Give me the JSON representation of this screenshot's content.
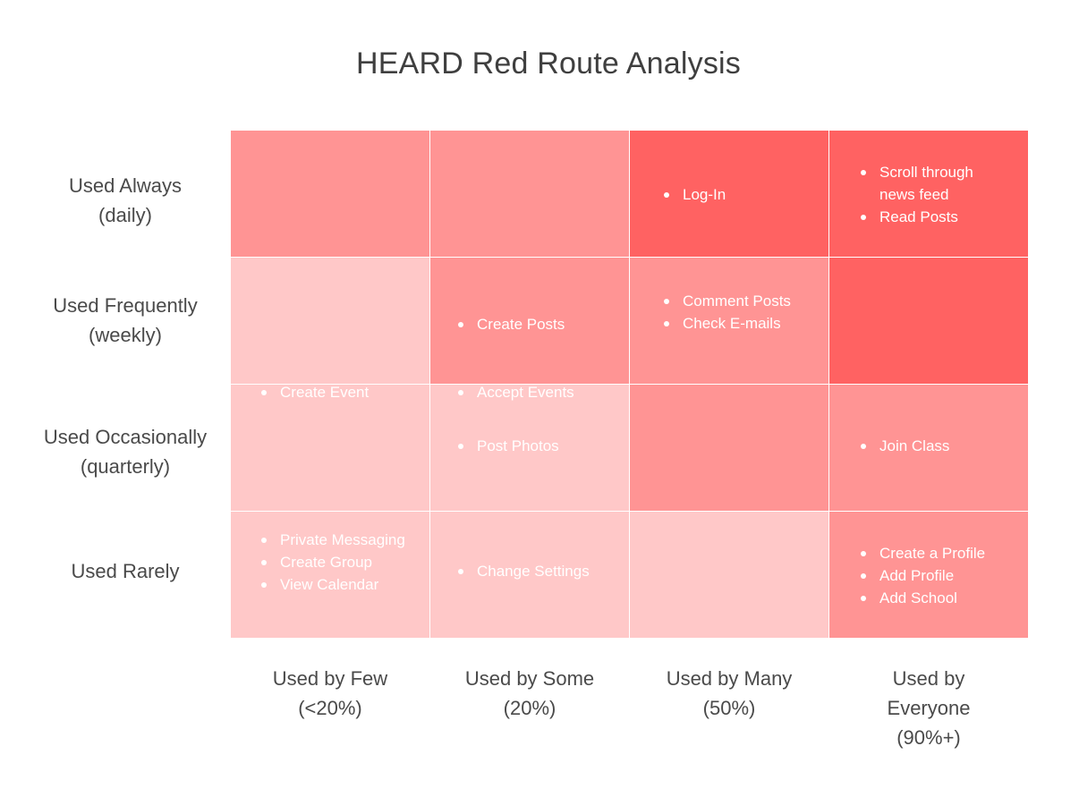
{
  "title": "HEARD Red Route Analysis",
  "colors": {
    "dark": "#ff6262",
    "mid": "#ff9494",
    "light": "#ffc8c8"
  },
  "rows": [
    {
      "line1": "Used Always",
      "line2": "(daily)"
    },
    {
      "line1": "Used Frequently",
      "line2": "(weekly)"
    },
    {
      "line1": "Used Occasionally",
      "line2": "(quarterly)"
    },
    {
      "line1": "Used Rarely",
      "line2": ""
    }
  ],
  "columns": [
    {
      "line1": "Used by Few",
      "line2": "(<20%)",
      "line3": ""
    },
    {
      "line1": "Used by Some",
      "line2": "(20%)",
      "line3": ""
    },
    {
      "line1": "Used by Many",
      "line2": "(50%)",
      "line3": ""
    },
    {
      "line1": "Used by",
      "line2": "Everyone",
      "line3": "(90%+)"
    }
  ],
  "cells": [
    [
      {
        "intensity": "mid",
        "items": []
      },
      {
        "intensity": "mid",
        "items": []
      },
      {
        "intensity": "dark",
        "items": [
          "Log-In"
        ]
      },
      {
        "intensity": "dark",
        "items": [
          "Scroll through news feed",
          "Read Posts"
        ]
      }
    ],
    [
      {
        "intensity": "light",
        "items": []
      },
      {
        "intensity": "mid",
        "items": [
          "Create Posts"
        ]
      },
      {
        "intensity": "mid",
        "items": [
          "Comment Posts",
          "Check E-mails"
        ]
      },
      {
        "intensity": "dark",
        "items": []
      }
    ],
    [
      {
        "intensity": "light",
        "items": [
          "Create Event"
        ]
      },
      {
        "intensity": "light",
        "items": [
          "Accept Events",
          "Post Photos"
        ]
      },
      {
        "intensity": "mid",
        "items": []
      },
      {
        "intensity": "mid",
        "items": [
          "Join Class"
        ]
      }
    ],
    [
      {
        "intensity": "light",
        "items": [
          "Private Messaging",
          "Create Group",
          "View Calendar"
        ]
      },
      {
        "intensity": "light",
        "items": [
          "Change Settings"
        ]
      },
      {
        "intensity": "light",
        "items": []
      },
      {
        "intensity": "mid",
        "items": [
          "Create a Profile",
          "Add Profile",
          "Add School"
        ]
      }
    ]
  ]
}
